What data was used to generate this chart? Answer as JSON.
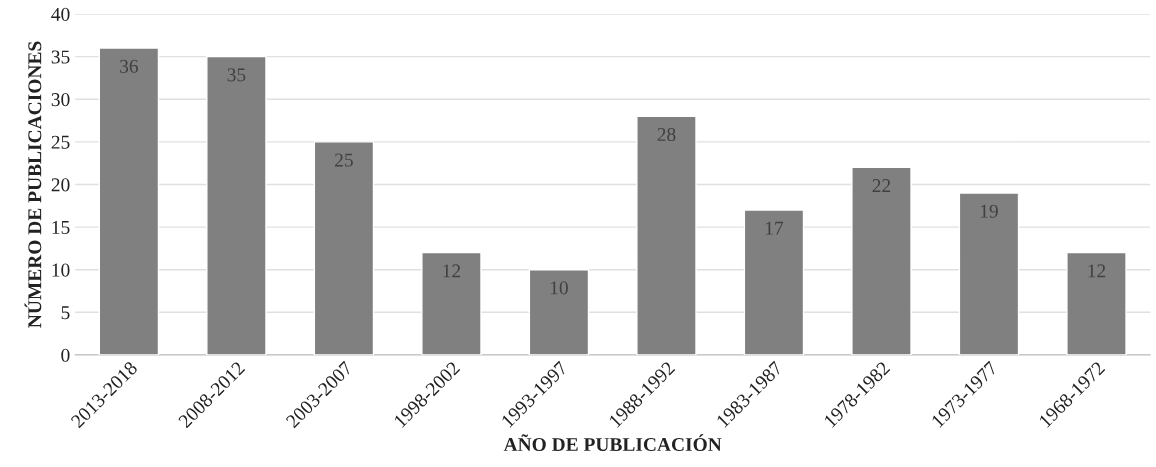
{
  "chart_data": {
    "type": "bar",
    "xlabel": "AÑO DE PUBLICACIÓN",
    "ylabel": "NÚMERO DE PUBLICACIONES",
    "categories": [
      "2013-2018",
      "2008-2012",
      "2003-2007",
      "1998-2002",
      "1993-1997",
      "1988-1992",
      "1983-1987",
      "1978-1982",
      "1973-1977",
      "1968-1972"
    ],
    "values": [
      36,
      35,
      25,
      12,
      10,
      28,
      17,
      22,
      19,
      12
    ],
    "color": "#808080",
    "ylim": [
      0,
      40
    ],
    "yticks": [
      0,
      5,
      10,
      15,
      20,
      25,
      30,
      35,
      40
    ],
    "grid": "y",
    "data_labels": true
  }
}
